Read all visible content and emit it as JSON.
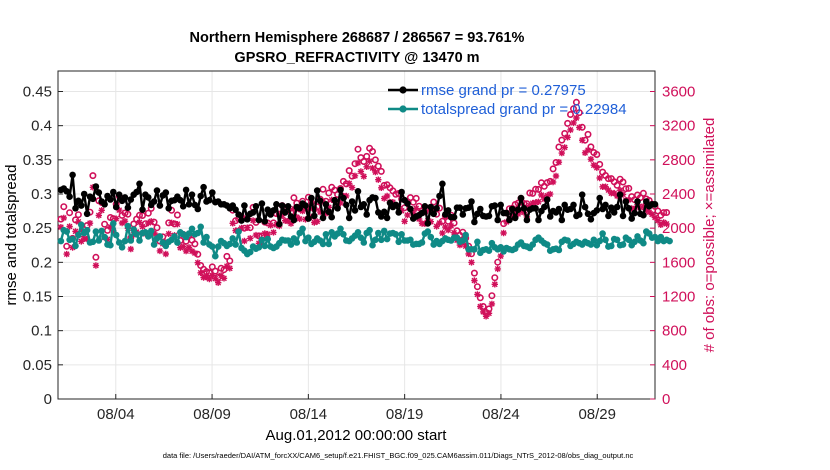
{
  "chart_data": {
    "type": "line",
    "title": "Northern Hemisphere 268687 / 286567 = 93.761%",
    "subtitle": "GPSRO_REFRACTIVITY @ 13470 m",
    "xlabel": "Aug.01,2012 00:00:00 start",
    "ylabel_left": "rmse and totalspread",
    "ylabel_right": "# of obs: o=possible; ×=assimilated",
    "footer": "data file: /Users/raeder/DAI/ATM_forcXX/CAM6_setup/f.e21.FHIST_BGC.f09_025.CAM6assim.011/Diags_NTrS_2012-08/obs_diag_output.nc",
    "x_start_day": 1.0,
    "x_end_day": 32.0,
    "xtick_days": [
      4,
      9,
      14,
      19,
      24,
      29
    ],
    "xtick_labels": [
      "08/04",
      "08/09",
      "08/14",
      "08/19",
      "08/24",
      "08/29"
    ],
    "ylim_left": [
      0,
      0.48
    ],
    "yticks_left": [
      "0",
      "0.05",
      "0.1",
      "0.15",
      "0.2",
      "0.25",
      "0.3",
      "0.35",
      "0.4",
      "0.45"
    ],
    "ylim_right": [
      0,
      3840
    ],
    "yticks_right": [
      "0",
      "400",
      "800",
      "1200",
      "1600",
      "2000",
      "2400",
      "2800",
      "3200",
      "3600"
    ],
    "grid": true,
    "legend_position": "top-right",
    "legend": [
      {
        "label": "rmse grand pr = 0.27975",
        "color": "#000000"
      },
      {
        "label": "totalspread grand pr = 0.22984",
        "color": "#0f8a86"
      }
    ],
    "colors": {
      "rmse": "#000000",
      "spread": "#0f8a86",
      "obs": "#d0105a",
      "legend_text": "#1f5fd8"
    },
    "series": [
      {
        "name": "rmse grand pr = 0.27975",
        "axis": "left",
        "values": [
          0.306,
          0.308,
          0.304,
          0.296,
          0.328,
          0.279,
          0.29,
          0.283,
          0.3,
          0.271,
          0.296,
          0.293,
          0.311,
          0.302,
          0.289,
          0.285,
          0.297,
          0.292,
          0.303,
          0.281,
          0.299,
          0.29,
          0.295,
          0.28,
          0.292,
          0.299,
          0.303,
          0.315,
          0.277,
          0.299,
          0.295,
          0.284,
          0.289,
          0.305,
          0.283,
          0.298,
          0.302,
          0.279,
          0.29,
          0.291,
          0.296,
          0.291,
          0.282,
          0.306,
          0.285,
          0.299,
          0.284,
          0.278,
          0.297,
          0.31,
          0.289,
          0.291,
          0.302,
          0.288,
          0.289,
          0.285,
          0.285,
          0.283,
          0.279,
          0.283,
          0.277,
          0.27,
          0.261,
          0.283,
          0.263,
          0.271,
          0.273,
          0.282,
          0.262,
          0.286,
          0.26,
          0.277,
          0.27,
          0.276,
          0.285,
          0.256,
          0.283,
          0.273,
          0.282,
          0.267,
          0.262,
          0.281,
          0.279,
          0.286,
          0.283,
          0.264,
          0.294,
          0.268,
          0.305,
          0.29,
          0.265,
          0.285,
          0.274,
          0.266,
          0.291,
          0.279,
          0.306,
          0.294,
          0.284,
          0.265,
          0.289,
          0.276,
          0.304,
          0.281,
          0.285,
          0.27,
          0.291,
          0.295,
          0.294,
          0.273,
          0.267,
          0.274,
          0.265,
          0.287,
          0.281,
          0.284,
          0.273,
          0.303,
          0.291,
          0.286,
          0.278,
          0.264,
          0.267,
          0.269,
          0.272,
          0.282,
          0.257,
          0.281,
          0.271,
          0.279,
          0.297,
          0.315,
          0.27,
          0.276,
          0.266,
          0.266,
          0.28,
          0.28,
          0.27,
          0.279,
          0.28,
          0.289,
          0.259,
          0.271,
          0.278,
          0.268,
          0.267,
          0.268,
          0.282,
          0.283,
          0.262,
          0.284,
          0.272,
          0.272,
          0.262,
          0.278,
          0.265,
          0.277,
          0.294,
          0.279,
          0.262,
          0.277,
          0.279,
          0.279,
          0.262,
          0.275,
          0.281,
          0.292,
          0.267,
          0.275,
          0.273,
          0.278,
          0.262,
          0.284,
          0.277,
          0.278,
          0.284,
          0.268,
          0.27,
          0.299,
          0.281,
          0.271,
          0.263,
          0.272,
          0.276,
          0.294,
          0.278,
          0.284,
          0.268,
          0.28,
          0.273,
          0.281,
          0.299,
          0.268,
          0.289,
          0.279,
          0.264,
          0.272,
          0.289,
          0.271,
          0.269,
          0.289,
          0.282,
          0.285,
          0.285
        ]
      },
      {
        "name": "totalspread grand pr = 0.22984",
        "axis": "left",
        "values": [
          0.231,
          0.247,
          0.245,
          0.233,
          0.234,
          0.224,
          0.24,
          0.255,
          0.243,
          0.247,
          0.229,
          0.23,
          0.245,
          0.232,
          0.246,
          0.237,
          0.226,
          0.225,
          0.257,
          0.24,
          0.229,
          0.222,
          0.231,
          0.253,
          0.232,
          0.248,
          0.241,
          0.232,
          0.243,
          0.244,
          0.238,
          0.246,
          0.226,
          0.235,
          0.238,
          0.229,
          0.224,
          0.23,
          0.233,
          0.238,
          0.229,
          0.244,
          0.241,
          0.237,
          0.242,
          0.249,
          0.241,
          0.243,
          0.252,
          0.229,
          0.237,
          0.226,
          0.223,
          0.209,
          0.223,
          0.231,
          0.228,
          0.224,
          0.227,
          0.235,
          0.226,
          0.245,
          0.221,
          0.217,
          0.212,
          0.215,
          0.223,
          0.22,
          0.222,
          0.233,
          0.224,
          0.234,
          0.223,
          0.221,
          0.223,
          0.228,
          0.233,
          0.232,
          0.232,
          0.226,
          0.235,
          0.229,
          0.243,
          0.249,
          0.231,
          0.236,
          0.227,
          0.23,
          0.235,
          0.232,
          0.227,
          0.241,
          0.227,
          0.244,
          0.238,
          0.242,
          0.249,
          0.241,
          0.232,
          0.231,
          0.235,
          0.239,
          0.244,
          0.236,
          0.229,
          0.243,
          0.247,
          0.225,
          0.233,
          0.243,
          0.233,
          0.246,
          0.234,
          0.242,
          0.243,
          0.241,
          0.23,
          0.241,
          0.232,
          0.232,
          0.233,
          0.226,
          0.227,
          0.227,
          0.229,
          0.242,
          0.245,
          0.237,
          0.226,
          0.231,
          0.227,
          0.231,
          0.235,
          0.233,
          0.232,
          0.236,
          0.236,
          0.23,
          0.232,
          0.24,
          0.219,
          0.219,
          0.219,
          0.23,
          0.214,
          0.218,
          0.219,
          0.217,
          0.228,
          0.222,
          0.219,
          0.222,
          0.216,
          0.221,
          0.219,
          0.218,
          0.22,
          0.226,
          0.229,
          0.224,
          0.223,
          0.221,
          0.226,
          0.233,
          0.236,
          0.232,
          0.228,
          0.226,
          0.217,
          0.219,
          0.22,
          0.218,
          0.23,
          0.233,
          0.232,
          0.224,
          0.227,
          0.23,
          0.228,
          0.226,
          0.23,
          0.228,
          0.226,
          0.233,
          0.225,
          0.231,
          0.242,
          0.233,
          0.223,
          0.224,
          0.234,
          0.233,
          0.225,
          0.226,
          0.236,
          0.233,
          0.225,
          0.23,
          0.238,
          0.232,
          0.228,
          0.245,
          0.242,
          0.236,
          0.237,
          0.231,
          0.237,
          0.231,
          0.233,
          0.231
        ]
      },
      {
        "name": "possible",
        "axis": "right",
        "marker": "o",
        "values": [
          2106,
          2251,
          1788,
          2181,
          1880,
          2097,
          2158,
          1931,
          1982,
          2031,
          2187,
          2615,
          1659,
          2320,
          2300,
          2046,
          1974,
          2125,
          2112,
          2281,
          2375,
          2149,
          2178,
          2164,
          1887,
          2049,
          2106,
          2151,
          2148,
          2052,
          2175,
          2231,
          2071,
          2005,
          1849,
          1898,
          1828,
          2062,
          2209,
          2050,
          2154,
          1856,
          1927,
          1847,
          1919,
          1860,
          1816,
          1694,
          1563,
          1519,
          1492,
          1478,
          1546,
          1497,
          1424,
          1530,
          1514,
          1670,
          1617,
          2210,
          2087,
          2109,
          2137,
          2000,
          2111,
          2006,
          2243,
          2067,
          1910,
          1910,
          2071,
          2061,
          2175,
          2062,
          2171,
          2165,
          2264,
          2214,
          2208,
          2183,
          2356,
          2293,
          2224,
          2316,
          2243,
          2361,
          2301,
          2224,
          2250,
          2340,
          2455,
          2316,
          2412,
          2478,
          2446,
          2394,
          2464,
          2548,
          2518,
          2674,
          2609,
          2755,
          2924,
          2826,
          2780,
          2840,
          2935,
          2897,
          2799,
          2727,
          2665,
          2501,
          2508,
          2473,
          2436,
          2396,
          2406,
          2342,
          2239,
          2310,
          2358,
          2304,
          2349,
          2257,
          2200,
          2189,
          2235,
          2226,
          2306,
          2163,
          2235,
          2080,
          2145,
          2080,
          2152,
          2061,
          1969,
          1916,
          1953,
          1885,
          1789,
          1700,
          1474,
          1315,
          1185,
          1083,
          1013,
          1055,
          1209,
          1420,
          1601,
          1771,
          2053,
          2178,
          2228,
          2233,
          2277,
          2293,
          2349,
          2289,
          2286,
          2412,
          2407,
          2455,
          2454,
          2531,
          2490,
          2534,
          2547,
          2694,
          2769,
          2950,
          3031,
          3108,
          3227,
          3331,
          3398,
          3474,
          3353,
          3181,
          3030,
          3098,
          2951,
          2886,
          2863,
          2747,
          2656,
          2617,
          2580,
          2580,
          2543,
          2502,
          2573,
          2540,
          2462,
          2466,
          2369,
          2333,
          2388,
          2358,
          2408,
          2341,
          2324,
          2282,
          2255,
          2201,
          2151,
          2182,
          2183
        ]
      },
      {
        "name": "assimilated",
        "axis": "right",
        "marker": "x",
        "values": [
          2011,
          2120,
          1696,
          2019,
          1774,
          1962,
          2075,
          1845,
          1875,
          1874,
          2058,
          2478,
          1563,
          2150,
          2209,
          1891,
          1870,
          2015,
          1973,
          2111,
          2212,
          2060,
          2082,
          1999,
          1755,
          1927,
          1955,
          2068,
          2018,
          1934,
          2061,
          2080,
          1943,
          1911,
          1734,
          1818,
          1697,
          1934,
          2063,
          1917,
          2047,
          1771,
          1786,
          1731,
          1776,
          1730,
          1708,
          1596,
          1477,
          1423,
          1428,
          1405,
          1446,
          1410,
          1362,
          1447,
          1413,
          1555,
          1530,
          2057,
          1972,
          1975,
          2002,
          1850,
          2005,
          1881,
          2090,
          1919,
          1823,
          1821,
          1937,
          1931,
          2034,
          1950,
          2041,
          2025,
          2147,
          2087,
          2082,
          2054,
          2228,
          2129,
          2109,
          2200,
          2103,
          2233,
          2133,
          2066,
          2078,
          2188,
          2305,
          2172,
          2244,
          2332,
          2324,
          2247,
          2295,
          2376,
          2378,
          2524,
          2475,
          2613,
          2764,
          2664,
          2606,
          2718,
          2784,
          2703,
          2656,
          2568,
          2473,
          2349,
          2377,
          2304,
          2304,
          2269,
          2254,
          2204,
          2080,
          2153,
          2226,
          2176,
          2231,
          2107,
          2055,
          2051,
          2090,
          2076,
          2172,
          2021,
          2061,
          1942,
          2013,
          1977,
          2026,
          1946,
          1859,
          1802,
          1837,
          1789,
          1699,
          1599,
          1387,
          1225,
          1083,
          1020,
          968,
          1003,
          1113,
          1343,
          1523,
          1673,
          1944,
          2072,
          2105,
          2129,
          2179,
          2166,
          2207,
          2183,
          2132,
          2263,
          2293,
          2301,
          2309,
          2388,
          2340,
          2381,
          2399,
          2540,
          2611,
          2772,
          2879,
          2946,
          3064,
          3151,
          3232,
          3290,
          3179,
          3030,
          2882,
          2914,
          2808,
          2737,
          2708,
          2587,
          2484,
          2486,
          2446,
          2409,
          2410,
          2376,
          2444,
          2395,
          2328,
          2331,
          2232,
          2226,
          2276,
          2241,
          2256,
          2210,
          2188,
          2162,
          2125,
          2089,
          2039,
          2068,
          2050
        ]
      }
    ]
  }
}
